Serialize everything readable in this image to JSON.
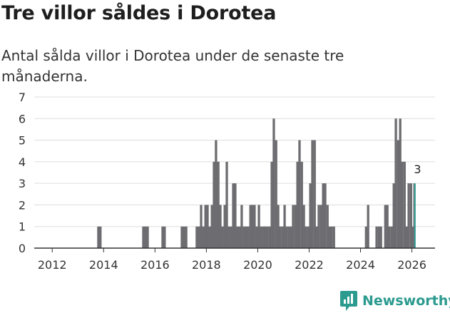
{
  "header": {
    "title": "Tre villor såldes i Dorotea",
    "subtitle": "Antal sålda villor i Dorotea under de senaste tre månaderna."
  },
  "brand": {
    "name": "Newsworthy"
  },
  "colors": {
    "bar": "#6d6c70",
    "highlight": "#2b9a8f",
    "grid": "#dddddd",
    "axis": "#333333"
  },
  "chart_data": {
    "type": "bar",
    "title": "Tre villor såldes i Dorotea",
    "subtitle": "Antal sålda villor i Dorotea under de senaste tre månaderna.",
    "xlabel": "",
    "ylabel": "",
    "ylim": [
      0,
      7
    ],
    "yticks": [
      0,
      1,
      2,
      3,
      4,
      5,
      6,
      7
    ],
    "xlim": [
      2011.3,
      2026.9
    ],
    "xticks": [
      2012,
      2014,
      2016,
      2018,
      2020,
      2022,
      2024,
      2026
    ],
    "bar_width_years": 0.0833,
    "grid": true,
    "annotation": {
      "text": "3",
      "x": 2026.08,
      "value": 3
    },
    "series": [
      {
        "name": "Antal sålda villor",
        "x": [
          2013.75,
          2013.83,
          2015.5,
          2015.58,
          2015.67,
          2016.25,
          2016.33,
          2017.0,
          2017.08,
          2017.17,
          2017.58,
          2017.67,
          2017.75,
          2017.83,
          2017.92,
          2018.0,
          2018.08,
          2018.17,
          2018.25,
          2018.33,
          2018.42,
          2018.5,
          2018.58,
          2018.67,
          2018.75,
          2018.83,
          2018.92,
          2019.0,
          2019.08,
          2019.17,
          2019.25,
          2019.33,
          2019.42,
          2019.5,
          2019.58,
          2019.67,
          2019.75,
          2019.83,
          2019.92,
          2020.0,
          2020.08,
          2020.17,
          2020.25,
          2020.33,
          2020.42,
          2020.5,
          2020.58,
          2020.67,
          2020.75,
          2020.83,
          2020.92,
          2021.0,
          2021.08,
          2021.17,
          2021.25,
          2021.33,
          2021.42,
          2021.5,
          2021.58,
          2021.67,
          2021.75,
          2021.83,
          2021.92,
          2022.0,
          2022.08,
          2022.17,
          2022.25,
          2022.33,
          2022.42,
          2022.5,
          2022.58,
          2022.67,
          2022.75,
          2022.83,
          2022.92,
          2024.17,
          2024.25,
          2024.58,
          2024.67,
          2024.75,
          2024.92,
          2025.0,
          2025.08,
          2025.17,
          2025.25,
          2025.33,
          2025.42,
          2025.5,
          2025.58,
          2025.67,
          2025.75,
          2025.83,
          2025.92,
          2026.0,
          2026.08
        ],
        "values": [
          1,
          1,
          1,
          1,
          1,
          1,
          1,
          1,
          1,
          1,
          1,
          1,
          2,
          1,
          2,
          2,
          1,
          2,
          4,
          5,
          4,
          2,
          1,
          2,
          4,
          1,
          1,
          3,
          3,
          1,
          1,
          2,
          1,
          1,
          1,
          2,
          2,
          2,
          1,
          2,
          1,
          1,
          1,
          1,
          1,
          4,
          6,
          5,
          2,
          1,
          1,
          2,
          1,
          1,
          1,
          2,
          2,
          4,
          5,
          4,
          2,
          1,
          1,
          3,
          5,
          5,
          1,
          2,
          2,
          3,
          3,
          2,
          1,
          1,
          1,
          1,
          2,
          1,
          1,
          1,
          2,
          2,
          1,
          1,
          3,
          6,
          5,
          6,
          4,
          4,
          1,
          3,
          3,
          1,
          3
        ]
      }
    ]
  }
}
